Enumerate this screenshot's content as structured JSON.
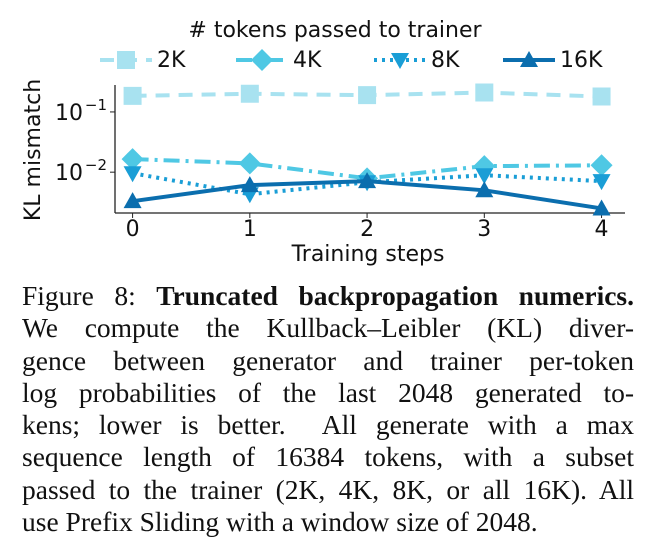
{
  "chart_data": {
    "type": "line",
    "legend_title": "# tokens passed to trainer",
    "legend": "top",
    "x_label": "Training steps",
    "y_label": "KL mismatch",
    "x": [
      0,
      1,
      2,
      3,
      4
    ],
    "xlim": [
      -0.15,
      4.2
    ],
    "xticks": [
      0,
      1,
      2,
      3,
      4
    ],
    "y_scale": "log",
    "ylim": [
      0.0021,
      0.28
    ],
    "yticks": [
      {
        "value": 0.1,
        "label": "10",
        "exponent": "−1"
      },
      {
        "value": 0.01,
        "label": "10",
        "exponent": "−2"
      }
    ],
    "series": [
      {
        "name": "2K",
        "color": "#a8e2f0",
        "dash": "14 9",
        "marker": "square",
        "values": [
          0.185,
          0.2,
          0.19,
          0.21,
          0.18
        ]
      },
      {
        "name": "4K",
        "color": "#4fc8e4",
        "dash": "16 6 3 6",
        "marker": "diamond",
        "values": [
          0.0165,
          0.014,
          0.0079,
          0.0126,
          0.013
        ]
      },
      {
        "name": "8K",
        "color": "#1a9ed6",
        "dash": "3 5",
        "marker": "triangle-down",
        "values": [
          0.0096,
          0.0043,
          0.0068,
          0.0089,
          0.0071
        ]
      },
      {
        "name": "16K",
        "color": "#0b6eae",
        "dash": "",
        "marker": "triangle-up",
        "values": [
          0.0033,
          0.0061,
          0.0071,
          0.005,
          0.0025
        ]
      }
    ]
  },
  "caption": {
    "label": "Figure 8:",
    "title": "Truncated backpropagation numerics.",
    "lines": [
      "We compute the Kullback–Leibler (KL) diver-",
      "gence between generator and trainer per-token",
      "log probabilities of the last 2048 generated to-",
      "kens; lower is better.  All generate with a max",
      "sequence length of 16384 tokens, with a subset",
      "passed to the trainer (2K, 4K, 8K, or all 16K). All",
      "use Prefix Sliding with a window size of 2048."
    ]
  }
}
